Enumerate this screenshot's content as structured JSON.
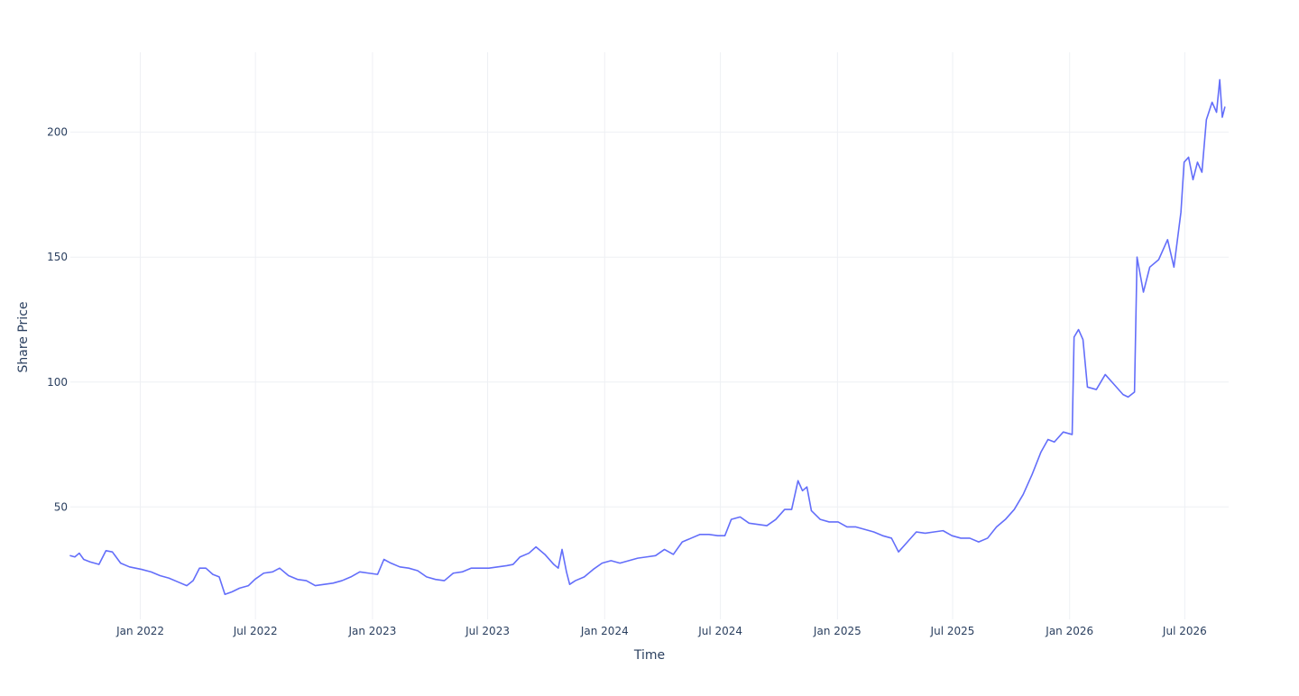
{
  "chart_data": {
    "type": "line",
    "title": "",
    "xlabel": "Time",
    "ylabel": "Share Price",
    "x_tick_labels": [
      "Jan 2022",
      "Jul 2022",
      "Jan 2023",
      "Jul 2023",
      "Jan 2024",
      "Jul 2024",
      "Jan 2025",
      "Jul 2025",
      "Jan 2026",
      "Jul 2026"
    ],
    "x_tick_dates": [
      "2022-01-01",
      "2022-07-01",
      "2023-01-01",
      "2023-07-01",
      "2024-01-01",
      "2024-07-01",
      "2025-01-01",
      "2025-07-01",
      "2026-01-01",
      "2026-07-01"
    ],
    "y_ticks": [
      50,
      100,
      150,
      200
    ],
    "xlim": [
      "2021-09-13",
      "2026-09-08"
    ],
    "ylim": [
      5,
      232
    ],
    "grid": true,
    "legend": false,
    "colors": {
      "line": "#636efa",
      "grid": "#eef0f4",
      "text": "#2a3f5f",
      "background": "#ffffff"
    },
    "series": [
      {
        "color": "#636efa",
        "points": [
          [
            "2021-09-13",
            30.5
          ],
          [
            "2021-09-20",
            30.0
          ],
          [
            "2021-09-27",
            31.5
          ],
          [
            "2021-10-04",
            29.0
          ],
          [
            "2021-10-14",
            28.0
          ],
          [
            "2021-10-28",
            27.0
          ],
          [
            "2021-11-08",
            32.5
          ],
          [
            "2021-11-18",
            32.0
          ],
          [
            "2021-12-01",
            27.5
          ],
          [
            "2021-12-15",
            26.0
          ],
          [
            "2022-01-03",
            25.0
          ],
          [
            "2022-01-18",
            24.0
          ],
          [
            "2022-02-01",
            22.5
          ],
          [
            "2022-02-15",
            21.5
          ],
          [
            "2022-03-01",
            20.0
          ],
          [
            "2022-03-15",
            18.5
          ],
          [
            "2022-03-25",
            20.5
          ],
          [
            "2022-04-04",
            25.5
          ],
          [
            "2022-04-14",
            25.5
          ],
          [
            "2022-04-25",
            23.0
          ],
          [
            "2022-05-05",
            22.0
          ],
          [
            "2022-05-14",
            15.0
          ],
          [
            "2022-05-25",
            16.0
          ],
          [
            "2022-06-06",
            17.5
          ],
          [
            "2022-06-20",
            18.5
          ],
          [
            "2022-06-30",
            21.0
          ],
          [
            "2022-07-14",
            23.5
          ],
          [
            "2022-07-28",
            24.0
          ],
          [
            "2022-08-08",
            25.5
          ],
          [
            "2022-08-22",
            22.5
          ],
          [
            "2022-09-05",
            21.0
          ],
          [
            "2022-09-19",
            20.5
          ],
          [
            "2022-10-03",
            18.5
          ],
          [
            "2022-10-17",
            19.0
          ],
          [
            "2022-10-31",
            19.5
          ],
          [
            "2022-11-14",
            20.5
          ],
          [
            "2022-11-28",
            22.0
          ],
          [
            "2022-12-12",
            24.0
          ],
          [
            "2022-12-26",
            23.5
          ],
          [
            "2023-01-09",
            23.0
          ],
          [
            "2023-01-19",
            29.0
          ],
          [
            "2023-01-30",
            27.5
          ],
          [
            "2023-02-13",
            26.0
          ],
          [
            "2023-02-27",
            25.5
          ],
          [
            "2023-03-13",
            24.5
          ],
          [
            "2023-03-27",
            22.0
          ],
          [
            "2023-04-10",
            21.0
          ],
          [
            "2023-04-24",
            20.5
          ],
          [
            "2023-05-08",
            23.5
          ],
          [
            "2023-05-22",
            24.0
          ],
          [
            "2023-06-05",
            25.5
          ],
          [
            "2023-06-19",
            25.5
          ],
          [
            "2023-07-03",
            25.5
          ],
          [
            "2023-07-17",
            26.0
          ],
          [
            "2023-07-31",
            26.5
          ],
          [
            "2023-08-10",
            27.0
          ],
          [
            "2023-08-21",
            30.0
          ],
          [
            "2023-09-04",
            31.5
          ],
          [
            "2023-09-15",
            34.0
          ],
          [
            "2023-09-29",
            31.0
          ],
          [
            "2023-10-13",
            27.0
          ],
          [
            "2023-10-20",
            25.5
          ],
          [
            "2023-10-26",
            33.0
          ],
          [
            "2023-11-02",
            24.0
          ],
          [
            "2023-11-07",
            19.0
          ],
          [
            "2023-11-16",
            20.5
          ],
          [
            "2023-11-30",
            22.0
          ],
          [
            "2023-12-14",
            25.0
          ],
          [
            "2023-12-28",
            27.5
          ],
          [
            "2024-01-11",
            28.5
          ],
          [
            "2024-01-25",
            27.5
          ],
          [
            "2024-02-08",
            28.5
          ],
          [
            "2024-02-22",
            29.5
          ],
          [
            "2024-03-07",
            30.0
          ],
          [
            "2024-03-21",
            30.5
          ],
          [
            "2024-04-04",
            33.0
          ],
          [
            "2024-04-18",
            31.0
          ],
          [
            "2024-05-02",
            36.0
          ],
          [
            "2024-05-16",
            37.5
          ],
          [
            "2024-05-30",
            39.0
          ],
          [
            "2024-06-13",
            39.0
          ],
          [
            "2024-06-27",
            38.5
          ],
          [
            "2024-07-08",
            38.5
          ],
          [
            "2024-07-18",
            45.0
          ],
          [
            "2024-08-01",
            46.0
          ],
          [
            "2024-08-15",
            43.5
          ],
          [
            "2024-08-29",
            43.0
          ],
          [
            "2024-09-12",
            42.5
          ],
          [
            "2024-09-26",
            45.0
          ],
          [
            "2024-10-10",
            49.0
          ],
          [
            "2024-10-21",
            49.0
          ],
          [
            "2024-10-31",
            60.5
          ],
          [
            "2024-11-07",
            56.5
          ],
          [
            "2024-11-14",
            58.0
          ],
          [
            "2024-11-21",
            48.5
          ],
          [
            "2024-12-05",
            45.0
          ],
          [
            "2024-12-19",
            44.0
          ],
          [
            "2025-01-02",
            44.0
          ],
          [
            "2025-01-16",
            42.0
          ],
          [
            "2025-01-30",
            42.0
          ],
          [
            "2025-02-13",
            41.0
          ],
          [
            "2025-02-27",
            40.0
          ],
          [
            "2025-03-13",
            38.5
          ],
          [
            "2025-03-27",
            37.5
          ],
          [
            "2025-04-07",
            32.0
          ],
          [
            "2025-04-21",
            36.0
          ],
          [
            "2025-05-05",
            40.0
          ],
          [
            "2025-05-19",
            39.5
          ],
          [
            "2025-06-02",
            40.0
          ],
          [
            "2025-06-16",
            40.5
          ],
          [
            "2025-06-30",
            38.5
          ],
          [
            "2025-07-14",
            37.5
          ],
          [
            "2025-07-28",
            37.5
          ],
          [
            "2025-08-11",
            36.0
          ],
          [
            "2025-08-25",
            37.5
          ],
          [
            "2025-09-08",
            42.0
          ],
          [
            "2025-09-22",
            45.0
          ],
          [
            "2025-10-06",
            49.0
          ],
          [
            "2025-10-20",
            55.0
          ],
          [
            "2025-11-03",
            63.0
          ],
          [
            "2025-11-17",
            72.0
          ],
          [
            "2025-11-28",
            77.0
          ],
          [
            "2025-12-08",
            76.0
          ],
          [
            "2025-12-22",
            80.0
          ],
          [
            "2026-01-05",
            79.0
          ],
          [
            "2026-01-08",
            118.0
          ],
          [
            "2026-01-15",
            121.0
          ],
          [
            "2026-01-22",
            117.0
          ],
          [
            "2026-01-29",
            98.0
          ],
          [
            "2026-02-12",
            97.0
          ],
          [
            "2026-02-26",
            103.0
          ],
          [
            "2026-03-12",
            99.0
          ],
          [
            "2026-03-26",
            95.0
          ],
          [
            "2026-04-03",
            94.0
          ],
          [
            "2026-04-13",
            96.0
          ],
          [
            "2026-04-17",
            150.0
          ],
          [
            "2026-04-27",
            136.0
          ],
          [
            "2026-05-07",
            146.0
          ],
          [
            "2026-05-21",
            149.0
          ],
          [
            "2026-06-04",
            157.0
          ],
          [
            "2026-06-14",
            146.0
          ],
          [
            "2026-06-25",
            168.0
          ],
          [
            "2026-06-30",
            188.0
          ],
          [
            "2026-07-07",
            190.0
          ],
          [
            "2026-07-14",
            181.0
          ],
          [
            "2026-07-21",
            188.0
          ],
          [
            "2026-07-28",
            184.0
          ],
          [
            "2026-08-04",
            205.0
          ],
          [
            "2026-08-13",
            212.0
          ],
          [
            "2026-08-20",
            208.0
          ],
          [
            "2026-08-25",
            221.0
          ],
          [
            "2026-08-29",
            206.0
          ],
          [
            "2026-09-02",
            210.0
          ]
        ]
      }
    ]
  }
}
